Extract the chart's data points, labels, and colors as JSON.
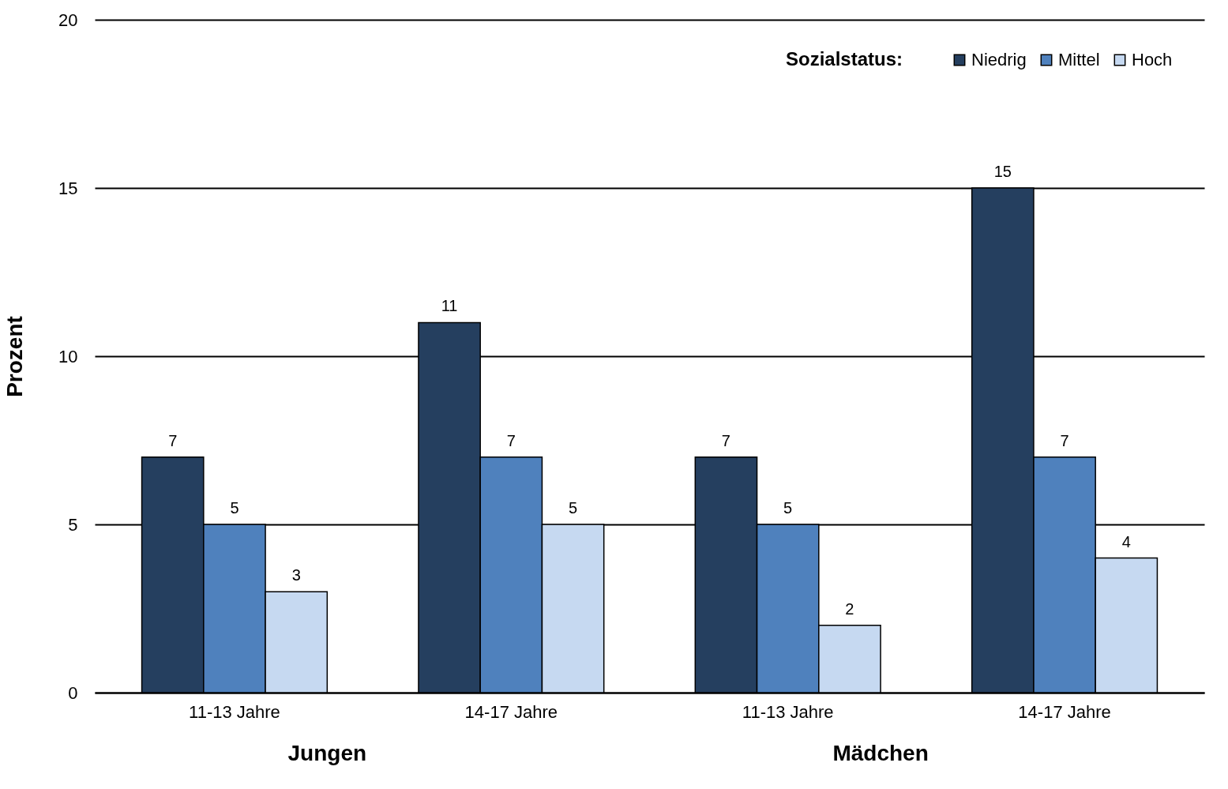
{
  "chart_data": {
    "type": "bar",
    "ylabel": "Prozent",
    "legend_title": "Sozialstatus:",
    "legend": "top right",
    "grid": "y",
    "data_labels": true,
    "categories": [
      "11-13 Jahre",
      "14-17 Jahre",
      "11-13 Jahre",
      "14-17 Jahre"
    ],
    "series": [
      {
        "name": "Niedrig",
        "color": "#253f5f",
        "values": [
          7,
          11,
          7,
          15
        ]
      },
      {
        "name": "Mittel",
        "color": "#4f81bd",
        "values": [
          5,
          7,
          5,
          7
        ]
      },
      {
        "name": "Hoch",
        "color": "#c6d9f1",
        "values": [
          3,
          5,
          2,
          4
        ]
      }
    ],
    "ylim": [
      0,
      20
    ],
    "yticks": [
      0,
      5,
      10,
      15,
      20
    ],
    "annotations": [
      "Jungen",
      "Mädchen"
    ]
  }
}
